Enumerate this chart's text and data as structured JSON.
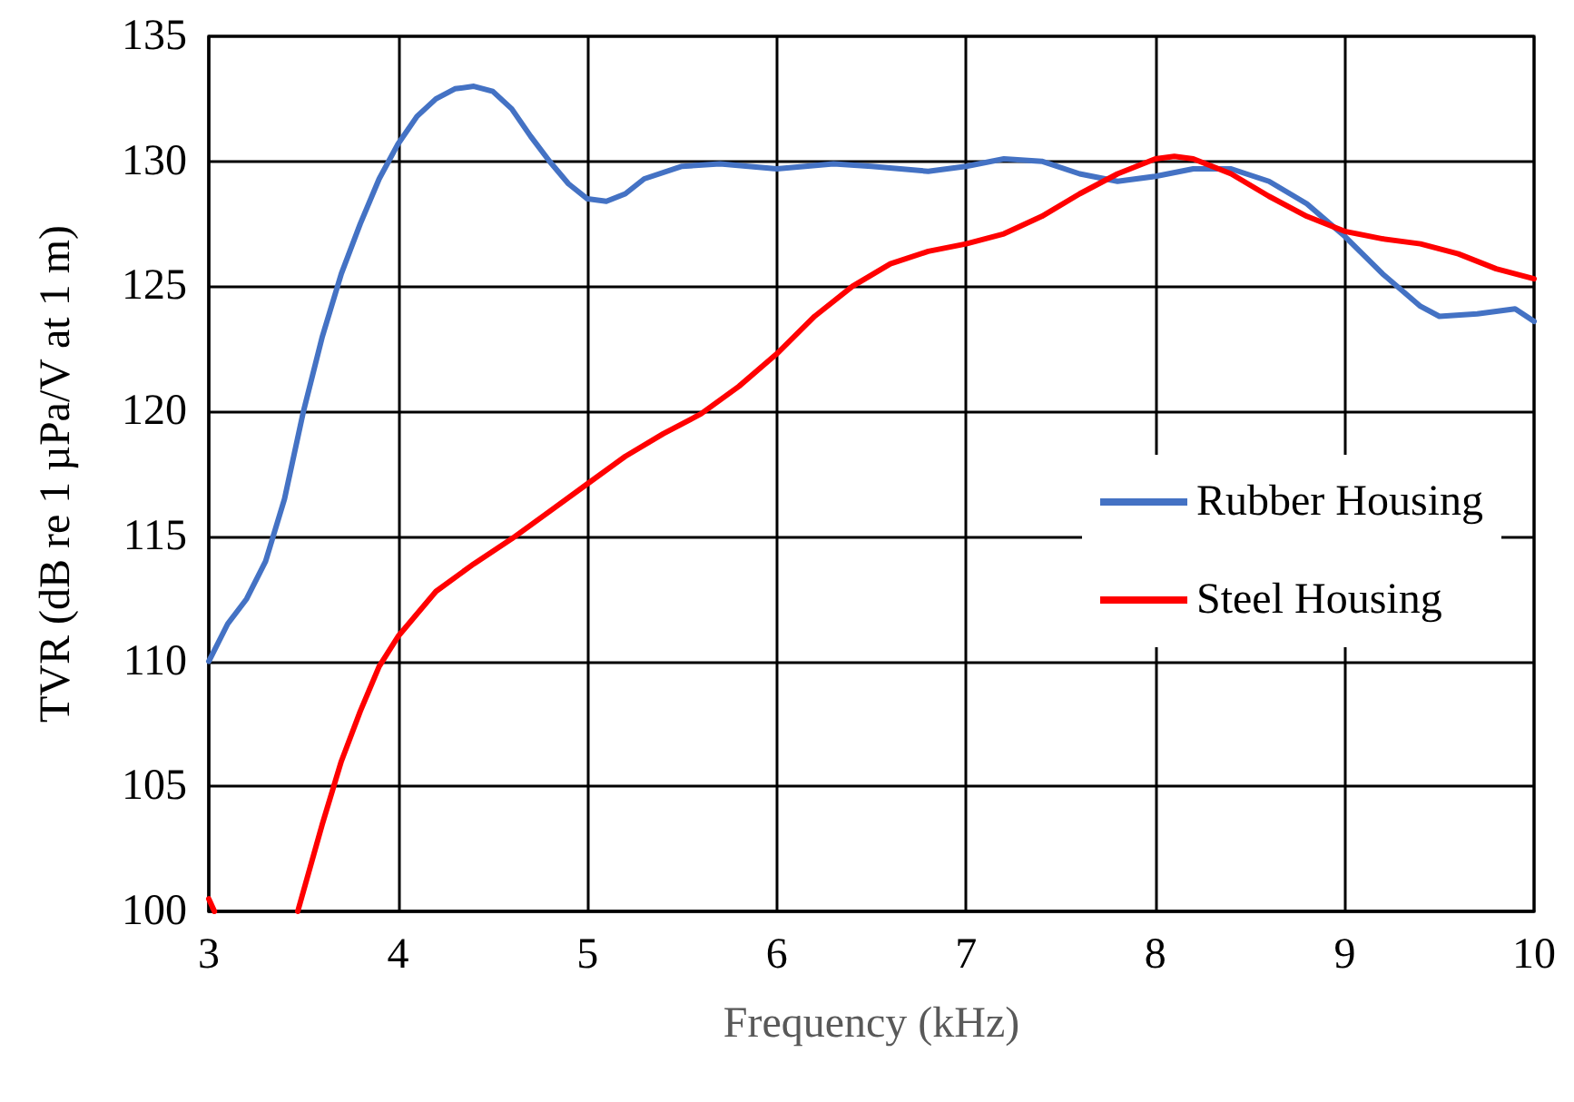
{
  "chart_data": {
    "type": "line",
    "xlabel": "Frequency (kHz)",
    "ylabel": "TVR (dB re 1 µPa/V at 1 m)",
    "xlim": [
      3,
      10
    ],
    "xticks": [
      3,
      4,
      5,
      6,
      7,
      8,
      9,
      10
    ],
    "ylim": [
      100,
      135
    ],
    "yticks": [
      100,
      105,
      110,
      115,
      120,
      125,
      130,
      135
    ],
    "grid": true,
    "legend": "right",
    "marker": "none",
    "line_style": "solid",
    "series": [
      {
        "name": "Rubber Housing",
        "color": "#4472c4",
        "x": [
          3.0,
          3.1,
          3.2,
          3.3,
          3.4,
          3.5,
          3.6,
          3.7,
          3.8,
          3.9,
          4.0,
          4.1,
          4.2,
          4.3,
          4.4,
          4.5,
          4.6,
          4.7,
          4.8,
          4.9,
          5.0,
          5.1,
          5.2,
          5.3,
          5.5,
          5.7,
          6.0,
          6.3,
          6.5,
          6.8,
          7.0,
          7.2,
          7.4,
          7.6,
          7.8,
          8.0,
          8.2,
          8.4,
          8.6,
          8.8,
          9.0,
          9.2,
          9.4,
          9.5,
          9.7,
          9.9,
          10.0
        ],
        "values": [
          110,
          111.5,
          112.5,
          114,
          116.5,
          120,
          123,
          125.5,
          127.5,
          129.3,
          130.7,
          131.8,
          132.5,
          132.9,
          133,
          132.8,
          132.1,
          131,
          130,
          129.1,
          128.5,
          128.4,
          128.7,
          129.3,
          129.8,
          129.9,
          129.7,
          129.9,
          129.8,
          129.6,
          129.8,
          130.1,
          130,
          129.5,
          129.2,
          129.4,
          129.7,
          129.7,
          129.2,
          128.3,
          127,
          125.5,
          124.2,
          123.8,
          123.9,
          124.1,
          123.6
        ]
      },
      {
        "name": "Steel Housing",
        "color": "#ff0000",
        "x": [
          3.0,
          3.03,
          3.2,
          3.47,
          3.6,
          3.7,
          3.8,
          3.9,
          4.0,
          4.2,
          4.4,
          4.6,
          4.8,
          5.0,
          5.2,
          5.4,
          5.6,
          5.8,
          6.0,
          6.2,
          6.4,
          6.6,
          6.8,
          7.0,
          7.2,
          7.4,
          7.6,
          7.8,
          8.0,
          8.1,
          8.2,
          8.4,
          8.6,
          8.8,
          9.0,
          9.2,
          9.4,
          9.6,
          9.8,
          10.0
        ],
        "values": [
          100.5,
          100,
          null,
          100,
          103.5,
          106,
          108,
          109.8,
          111,
          112.8,
          113.9,
          114.9,
          116,
          117.1,
          118.2,
          119.1,
          119.9,
          121,
          122.3,
          123.8,
          125,
          125.9,
          126.4,
          126.7,
          127.1,
          127.8,
          128.7,
          129.5,
          130.1,
          130.2,
          130.1,
          129.5,
          128.6,
          127.8,
          127.2,
          126.9,
          126.7,
          126.3,
          125.7,
          125.3
        ]
      }
    ]
  }
}
